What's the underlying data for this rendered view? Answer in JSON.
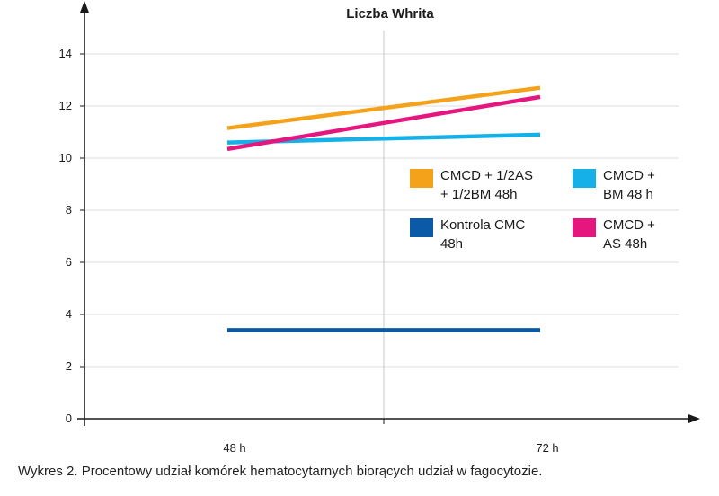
{
  "chart_data": {
    "type": "line",
    "title": "Liczba Whrita",
    "xlabel": "",
    "ylabel": "",
    "categories": [
      "48 h",
      "72 h"
    ],
    "ylim": [
      0,
      15
    ],
    "yticks": [
      0,
      2,
      4,
      6,
      8,
      10,
      12,
      14
    ],
    "grid": true,
    "series": [
      {
        "name": "CMCD + 1/2AS + 1/2BM 48h",
        "legend_lines": [
          "CMCD + 1/2AS",
          "+ 1/2BM 48h"
        ],
        "values": [
          11.15,
          12.7
        ],
        "color": "#f5a21b"
      },
      {
        "name": "CMCD + BM 48h",
        "legend_lines": [
          "CMCD +",
          "BM 48 h"
        ],
        "values": [
          10.6,
          10.9
        ],
        "color": "#15b0e8"
      },
      {
        "name": "Kontrola CMC 48h",
        "legend_lines": [
          "Kontrola CMC",
          "48h"
        ],
        "values": [
          3.4,
          3.4
        ],
        "color": "#0b5aa8"
      },
      {
        "name": "CMCD + AS 48h",
        "legend_lines": [
          "CMCD +",
          "AS 48h"
        ],
        "values": [
          10.35,
          12.35
        ],
        "color": "#e5177e"
      }
    ]
  },
  "caption": "Wykres 2. Procentowy udział komórek hematocytarnych biorących udział w fagocytozie."
}
